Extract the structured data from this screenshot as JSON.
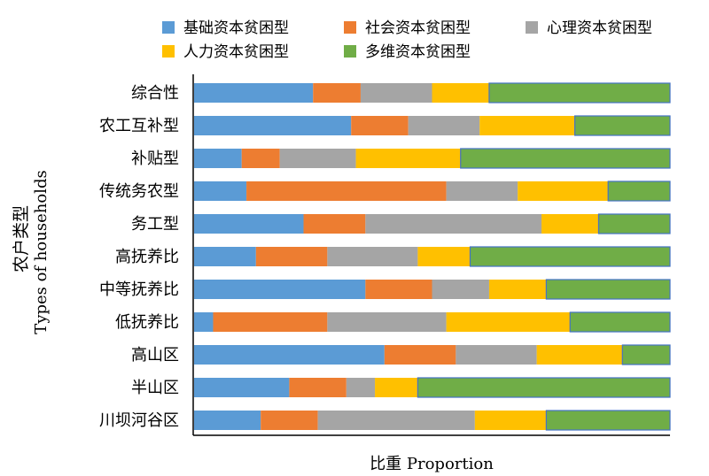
{
  "chart_data": {
    "type": "bar",
    "orientation": "horizontal",
    "stacked": "100%",
    "xlabel": "比重 Proportion",
    "ylabel_cn": "农户类型",
    "ylabel_en": "Types of households",
    "legend_position": "top",
    "grid": false,
    "xlim": [
      0,
      1
    ],
    "categories": [
      "综合性",
      "农工互补型",
      "补贴型",
      "传统务农型",
      "务工型",
      "高抚养比",
      "中等抚养比",
      "低抚养比",
      "高山区",
      "半山区",
      "川坝河谷区"
    ],
    "series": [
      {
        "name": "基础资本贫困型",
        "color": "#5B9BD5",
        "values": [
          0.25,
          0.33,
          0.1,
          0.11,
          0.23,
          0.13,
          0.36,
          0.04,
          0.4,
          0.2,
          0.14
        ]
      },
      {
        "name": "社会资本贫困型",
        "color": "#ED7D31",
        "values": [
          0.1,
          0.12,
          0.08,
          0.42,
          0.13,
          0.15,
          0.14,
          0.24,
          0.15,
          0.12,
          0.12
        ]
      },
      {
        "name": "心理资本贫困型",
        "color": "#A5A5A5",
        "values": [
          0.15,
          0.15,
          0.16,
          0.15,
          0.37,
          0.19,
          0.12,
          0.25,
          0.17,
          0.06,
          0.33
        ]
      },
      {
        "name": "人力资本贫困型",
        "color": "#FFC000",
        "values": [
          0.12,
          0.2,
          0.22,
          0.19,
          0.12,
          0.11,
          0.12,
          0.26,
          0.18,
          0.09,
          0.15
        ]
      },
      {
        "name": "多维资本贫困型",
        "color": "#70AD47",
        "values": [
          0.38,
          0.2,
          0.44,
          0.13,
          0.15,
          0.42,
          0.26,
          0.21,
          0.1,
          0.53,
          0.26
        ]
      }
    ]
  }
}
